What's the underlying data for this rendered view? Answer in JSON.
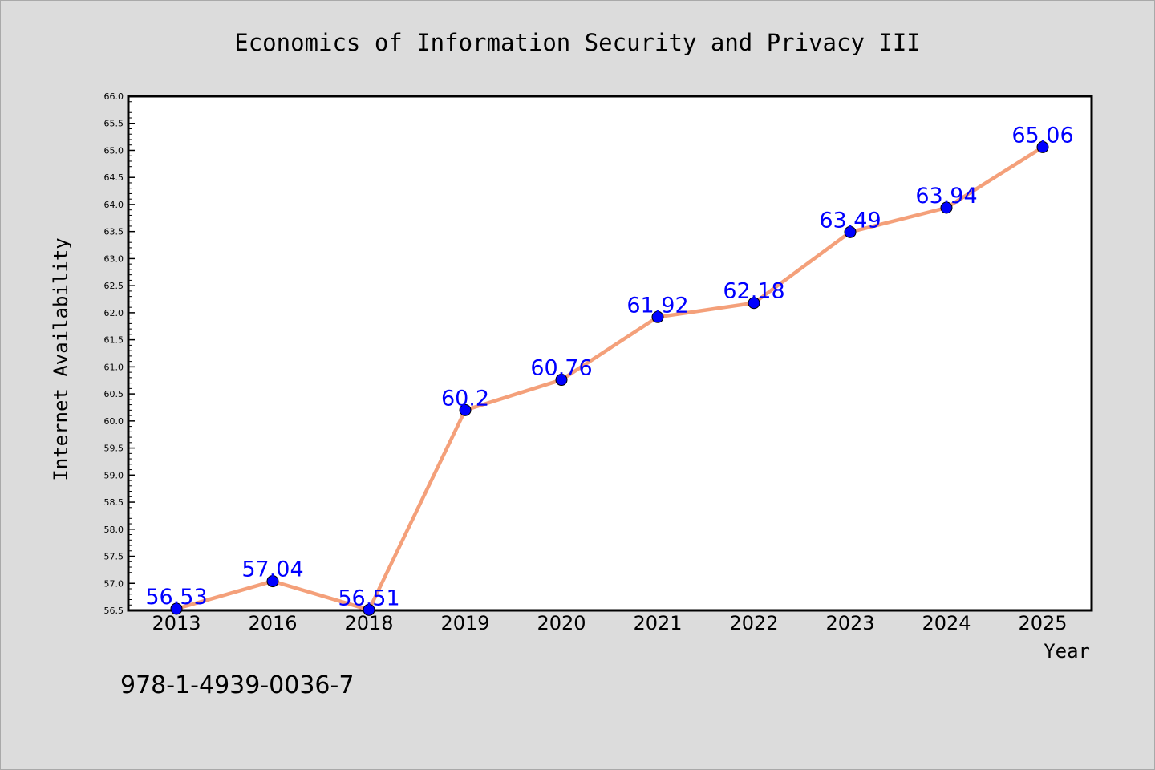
{
  "chart_data": {
    "type": "line",
    "title": "Economics of Information Security and Privacy III",
    "xlabel": "Year",
    "ylabel": "Internet Availability",
    "categories": [
      "2013",
      "2016",
      "2018",
      "2019",
      "2020",
      "2021",
      "2022",
      "2023",
      "2024",
      "2025"
    ],
    "series": [
      {
        "values": [
          56.53,
          57.04,
          56.51,
          60.2,
          60.76,
          61.92,
          62.18,
          63.49,
          63.94,
          65.06
        ],
        "labels": [
          "56.53",
          "57.04",
          "56.51",
          "60.2",
          "60.76",
          "61.92",
          "62.18",
          "63.49",
          "63.94",
          "65.06"
        ],
        "line_color": "#f4a07a",
        "marker_color": "#0000ff"
      }
    ],
    "ylim": [
      56.5,
      66.0
    ],
    "yticks": [
      "56.5",
      "57.0",
      "57.5",
      "58.0",
      "58.5",
      "59.0",
      "59.5",
      "60.0",
      "60.5",
      "61.0",
      "61.5",
      "62.0",
      "62.5",
      "63.0",
      "63.5",
      "64.0",
      "64.5",
      "65.0",
      "65.5",
      "66.0"
    ],
    "grid": false,
    "legend": "none"
  },
  "footer_text": "978-1-4939-0036-7"
}
